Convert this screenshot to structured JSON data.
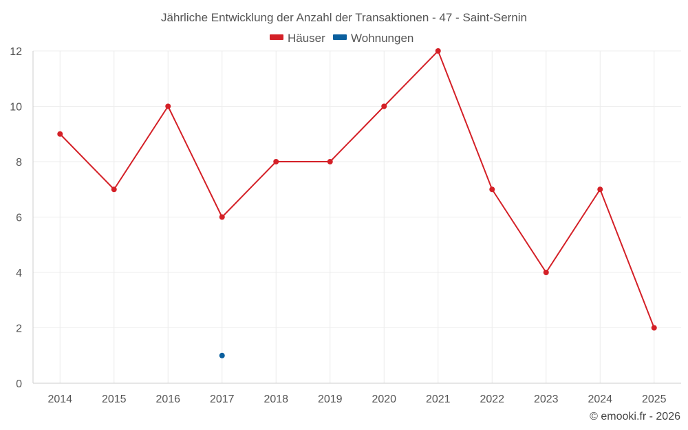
{
  "chart_data": {
    "type": "line",
    "title": "Jährliche Entwicklung der Anzahl der Transaktionen - 47 - Saint-Sernin",
    "categories": [
      "2014",
      "2015",
      "2016",
      "2017",
      "2018",
      "2019",
      "2020",
      "2021",
      "2022",
      "2023",
      "2024",
      "2025"
    ],
    "series": [
      {
        "name": "Häuser",
        "color": "#d42027",
        "values": [
          9,
          7,
          10,
          6,
          8,
          8,
          10,
          12,
          7,
          4,
          7,
          2
        ]
      },
      {
        "name": "Wohnungen",
        "color": "#0a5f9e",
        "values": [
          null,
          null,
          null,
          1,
          null,
          null,
          null,
          null,
          null,
          null,
          null,
          null
        ]
      }
    ],
    "ylim": [
      0,
      12
    ],
    "yticks": [
      0,
      2,
      4,
      6,
      8,
      10,
      12
    ],
    "xlabel": "",
    "ylabel": "",
    "grid": true,
    "legend": "top-center"
  },
  "credit": "© emooki.fr - 2026"
}
